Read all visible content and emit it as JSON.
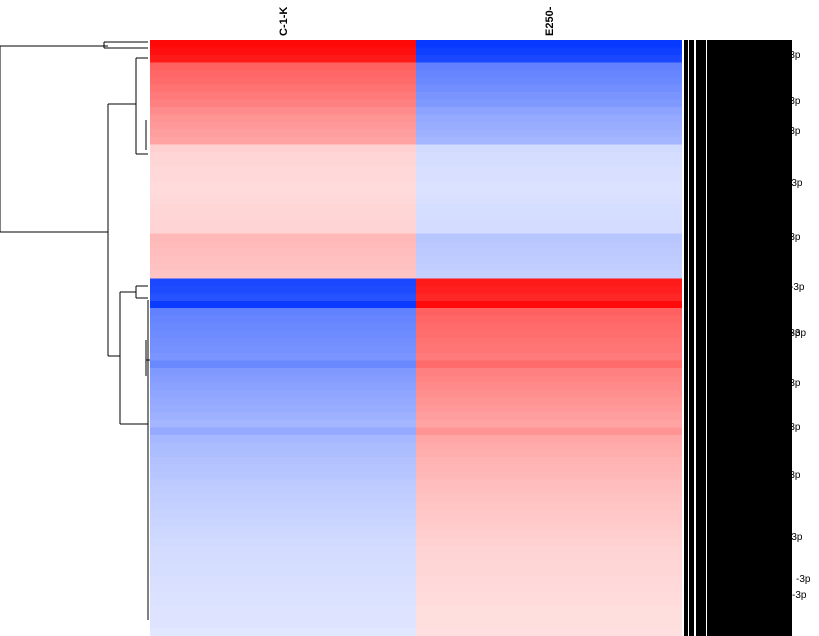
{
  "chart_data": {
    "type": "heatmap",
    "title": "",
    "xlabel": "",
    "ylabel": "",
    "columns": [
      "C-1-K",
      "E250-"
    ],
    "color_scale": {
      "low": "#0033ff",
      "mid": "#ffffff",
      "high": "#ff0000",
      "range": [
        -1,
        1
      ]
    },
    "row_values": [
      0.97,
      0.94,
      0.9,
      0.62,
      0.6,
      0.58,
      0.55,
      0.52,
      0.5,
      0.45,
      0.42,
      0.4,
      0.38,
      0.36,
      0.18,
      0.17,
      0.16,
      0.15,
      0.15,
      0.14,
      0.14,
      0.15,
      0.16,
      0.16,
      0.17,
      0.17,
      0.28,
      0.27,
      0.26,
      0.25,
      0.24,
      0.23,
      -0.9,
      -0.88,
      -0.85,
      -0.96,
      -0.62,
      -0.6,
      -0.58,
      -0.57,
      -0.55,
      -0.54,
      -0.52,
      -0.58,
      -0.5,
      -0.48,
      -0.46,
      -0.44,
      -0.42,
      -0.4,
      -0.38,
      -0.36,
      -0.42,
      -0.35,
      -0.33,
      -0.32,
      -0.3,
      -0.29,
      -0.28,
      -0.26,
      -0.25,
      -0.24,
      -0.23,
      -0.22,
      -0.21,
      -0.2,
      -0.19,
      -0.18,
      -0.17,
      -0.17,
      -0.16,
      -0.16,
      -0.15,
      -0.15,
      -0.14,
      -0.14,
      -0.13,
      -0.13,
      -0.13,
      -0.12
    ],
    "row_labels": [
      "-3p",
      "-3p",
      "-3p",
      "-3p",
      "-3p",
      "-3p",
      "-3p",
      "-3p",
      "-3p",
      "-3p",
      "-3p",
      "-3p",
      "-3p",
      "2-3p"
    ]
  }
}
